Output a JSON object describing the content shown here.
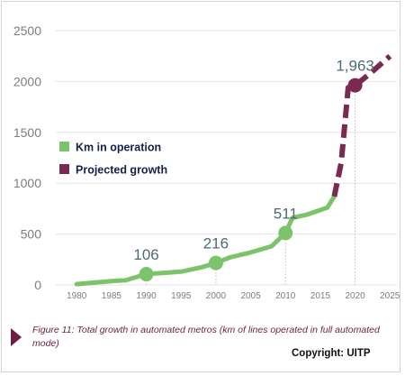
{
  "chart_data": {
    "type": "line",
    "title": "",
    "xlabel": "",
    "ylabel": "",
    "xlim": [
      1977,
      2026
    ],
    "ylim": [
      0,
      2500
    ],
    "x_ticks": [
      1980,
      1985,
      1990,
      1995,
      2000,
      2005,
      2010,
      2015,
      2020,
      2025
    ],
    "y_ticks": [
      0,
      500,
      1000,
      1500,
      2000,
      2500
    ],
    "grid": "horizontal",
    "legend_position": "left-middle",
    "series": [
      {
        "name": "Km in operation",
        "color": "#7dc36b",
        "style": "solid",
        "points": [
          [
            1980,
            8
          ],
          [
            1985,
            38
          ],
          [
            1987,
            45
          ],
          [
            1990,
            106
          ],
          [
            1995,
            130
          ],
          [
            1998,
            175
          ],
          [
            2000,
            216
          ],
          [
            2002,
            270
          ],
          [
            2005,
            320
          ],
          [
            2008,
            380
          ],
          [
            2010,
            511
          ],
          [
            2011,
            660
          ],
          [
            2013,
            690
          ],
          [
            2016,
            760
          ],
          [
            2017,
            870
          ]
        ]
      },
      {
        "name": "Projected growth",
        "color": "#7a2a52",
        "style": "dashed",
        "points": [
          [
            2017,
            870
          ],
          [
            2018,
            1200
          ],
          [
            2019,
            1940
          ],
          [
            2020,
            1963
          ],
          [
            2022,
            2070
          ],
          [
            2025,
            2250
          ]
        ]
      }
    ],
    "markers": [
      {
        "x": 1990,
        "y": 106,
        "label": "106",
        "color": "#7dc36b"
      },
      {
        "x": 2000,
        "y": 216,
        "label": "216",
        "color": "#7dc36b"
      },
      {
        "x": 2010,
        "y": 511,
        "label": "511",
        "color": "#7dc36b"
      },
      {
        "x": 2020,
        "y": 1963,
        "label": "1,963",
        "color": "#7a2a52"
      }
    ]
  },
  "caption": "Figure 11: Total growth in automated metros (km of lines operated in full automated mode)",
  "copyright": "Copyright: UITP"
}
